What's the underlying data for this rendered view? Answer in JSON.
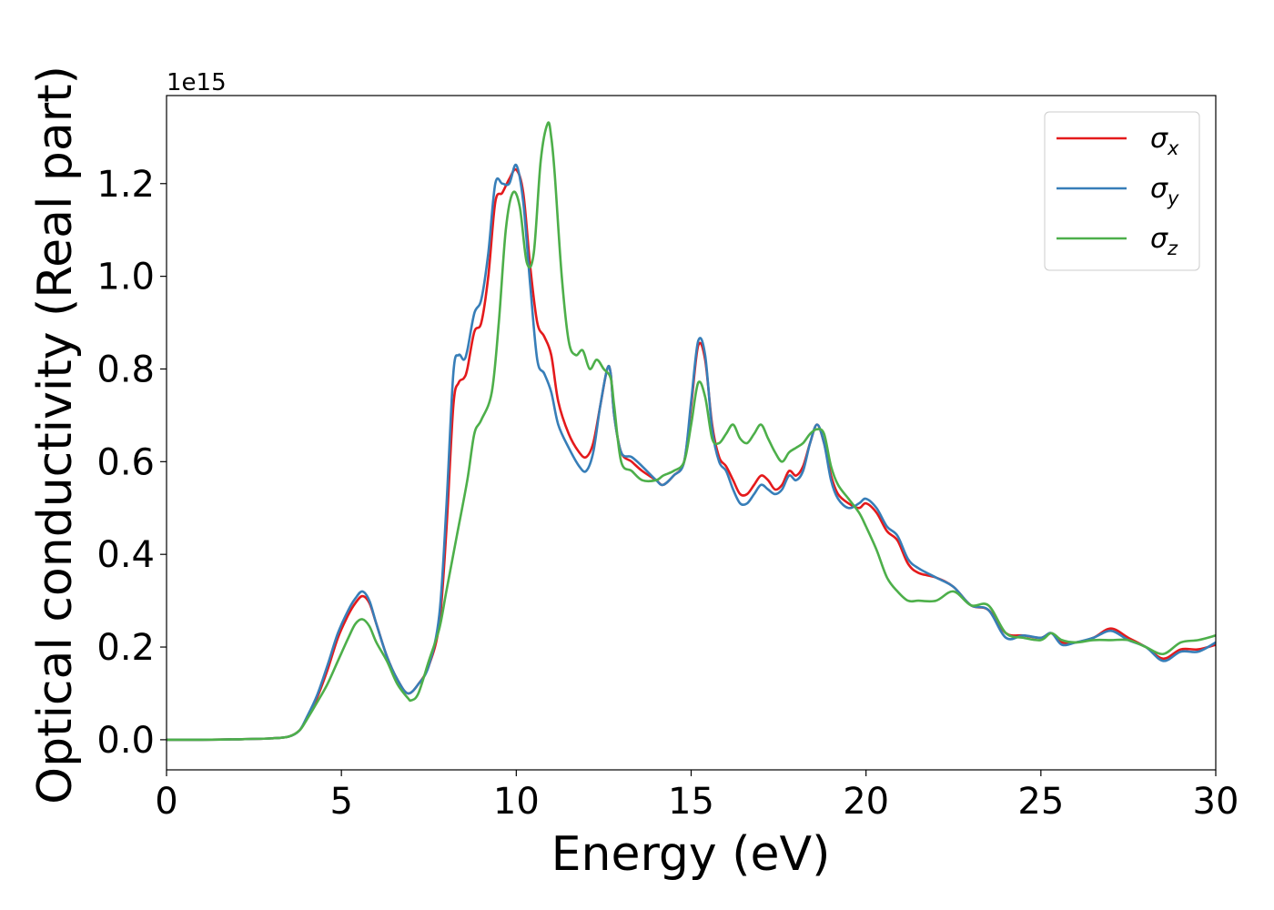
{
  "chart_data": {
    "type": "line",
    "title": "",
    "xlabel": "Energy (eV)",
    "ylabel": "Optical conductivity (Real part)",
    "y_offset_label": "1e15",
    "xlim": [
      0,
      30
    ],
    "ylim": [
      -0.065,
      1.39
    ],
    "x_ticks": [
      0,
      5,
      10,
      15,
      20,
      25,
      30
    ],
    "y_ticks": [
      0.0,
      0.2,
      0.4,
      0.6,
      0.8,
      1.0,
      1.2
    ],
    "grid": false,
    "legend_position": "upper right",
    "series": [
      {
        "name": "σ",
        "subscript": "x",
        "color": "#e41a1c",
        "x": [
          0,
          1,
          2,
          3,
          3.5,
          3.8,
          4.0,
          4.3,
          4.6,
          4.9,
          5.2,
          5.4,
          5.6,
          5.8,
          6.0,
          6.3,
          6.6,
          6.9,
          7.2,
          7.5,
          7.8,
          8.0,
          8.2,
          8.35,
          8.5,
          8.6,
          8.8,
          9.0,
          9.2,
          9.4,
          9.6,
          9.8,
          10.0,
          10.2,
          10.4,
          10.6,
          10.8,
          11.0,
          11.2,
          11.5,
          11.8,
          12.0,
          12.2,
          12.4,
          12.6,
          12.7,
          12.8,
          13.0,
          13.3,
          13.6,
          14.0,
          14.2,
          14.5,
          14.8,
          15.0,
          15.2,
          15.4,
          15.6,
          15.8,
          16.0,
          16.2,
          16.4,
          16.6,
          16.8,
          17.0,
          17.2,
          17.4,
          17.6,
          17.8,
          18.0,
          18.2,
          18.4,
          18.6,
          18.8,
          19.0,
          19.2,
          19.5,
          19.8,
          20.0,
          20.3,
          20.6,
          20.9,
          21.2,
          21.5,
          22.0,
          22.5,
          23.0,
          23.5,
          24.0,
          24.5,
          25.0,
          25.3,
          25.6,
          26.0,
          26.5,
          27.0,
          27.5,
          28.0,
          28.5,
          29.0,
          29.5,
          30.0
        ],
        "values": [
          0.0,
          0.0,
          0.001,
          0.003,
          0.007,
          0.02,
          0.045,
          0.09,
          0.15,
          0.22,
          0.27,
          0.295,
          0.31,
          0.295,
          0.25,
          0.18,
          0.13,
          0.1,
          0.12,
          0.16,
          0.25,
          0.45,
          0.72,
          0.77,
          0.78,
          0.8,
          0.88,
          0.9,
          1.0,
          1.16,
          1.18,
          1.21,
          1.23,
          1.18,
          1.02,
          0.9,
          0.87,
          0.83,
          0.73,
          0.66,
          0.62,
          0.61,
          0.64,
          0.72,
          0.8,
          0.79,
          0.7,
          0.62,
          0.6,
          0.58,
          0.56,
          0.55,
          0.57,
          0.6,
          0.72,
          0.85,
          0.82,
          0.68,
          0.61,
          0.59,
          0.56,
          0.53,
          0.53,
          0.55,
          0.57,
          0.56,
          0.54,
          0.55,
          0.58,
          0.57,
          0.59,
          0.64,
          0.68,
          0.64,
          0.57,
          0.53,
          0.51,
          0.5,
          0.51,
          0.49,
          0.45,
          0.43,
          0.38,
          0.36,
          0.35,
          0.33,
          0.29,
          0.28,
          0.23,
          0.225,
          0.22,
          0.23,
          0.21,
          0.21,
          0.22,
          0.24,
          0.22,
          0.2,
          0.175,
          0.195,
          0.195,
          0.205
        ]
      },
      {
        "name": "σ",
        "subscript": "y",
        "color": "#377eb8",
        "x": [
          0,
          1,
          2,
          3,
          3.5,
          3.8,
          4.0,
          4.3,
          4.6,
          4.9,
          5.2,
          5.4,
          5.6,
          5.8,
          6.0,
          6.3,
          6.6,
          6.9,
          7.2,
          7.5,
          7.8,
          8.0,
          8.2,
          8.35,
          8.5,
          8.6,
          8.8,
          9.0,
          9.2,
          9.4,
          9.6,
          9.8,
          10.0,
          10.2,
          10.4,
          10.6,
          10.8,
          11.0,
          11.2,
          11.5,
          11.8,
          12.0,
          12.2,
          12.4,
          12.6,
          12.7,
          12.8,
          13.0,
          13.3,
          13.6,
          14.0,
          14.2,
          14.5,
          14.8,
          15.0,
          15.2,
          15.4,
          15.6,
          15.8,
          16.0,
          16.2,
          16.4,
          16.6,
          16.8,
          17.0,
          17.2,
          17.4,
          17.6,
          17.8,
          18.0,
          18.2,
          18.4,
          18.6,
          18.8,
          19.0,
          19.2,
          19.5,
          19.8,
          20.0,
          20.3,
          20.6,
          20.9,
          21.2,
          21.5,
          22.0,
          22.5,
          23.0,
          23.5,
          24.0,
          24.5,
          25.0,
          25.3,
          25.6,
          26.0,
          26.5,
          27.0,
          27.5,
          28.0,
          28.5,
          29.0,
          29.5,
          30.0
        ],
        "values": [
          0.0,
          0.0,
          0.001,
          0.003,
          0.007,
          0.02,
          0.047,
          0.095,
          0.16,
          0.23,
          0.28,
          0.305,
          0.32,
          0.3,
          0.25,
          0.18,
          0.13,
          0.1,
          0.12,
          0.16,
          0.27,
          0.5,
          0.79,
          0.83,
          0.82,
          0.84,
          0.92,
          0.95,
          1.05,
          1.2,
          1.2,
          1.2,
          1.24,
          1.16,
          0.98,
          0.82,
          0.79,
          0.75,
          0.68,
          0.63,
          0.59,
          0.58,
          0.62,
          0.72,
          0.8,
          0.79,
          0.7,
          0.62,
          0.61,
          0.59,
          0.56,
          0.55,
          0.57,
          0.6,
          0.73,
          0.86,
          0.83,
          0.67,
          0.6,
          0.58,
          0.54,
          0.51,
          0.51,
          0.53,
          0.55,
          0.54,
          0.53,
          0.54,
          0.57,
          0.56,
          0.58,
          0.64,
          0.68,
          0.64,
          0.56,
          0.52,
          0.5,
          0.51,
          0.52,
          0.5,
          0.46,
          0.44,
          0.39,
          0.37,
          0.35,
          0.33,
          0.29,
          0.28,
          0.22,
          0.225,
          0.22,
          0.23,
          0.205,
          0.21,
          0.22,
          0.235,
          0.215,
          0.2,
          0.17,
          0.19,
          0.19,
          0.21
        ]
      },
      {
        "name": "σ",
        "subscript": "z",
        "color": "#4daf4a",
        "x": [
          0,
          1,
          2,
          3,
          3.5,
          3.8,
          4.0,
          4.3,
          4.6,
          4.9,
          5.2,
          5.4,
          5.6,
          5.8,
          6.0,
          6.3,
          6.6,
          6.9,
          7.0,
          7.2,
          7.5,
          7.8,
          8.0,
          8.3,
          8.6,
          8.8,
          9.0,
          9.3,
          9.5,
          9.7,
          9.9,
          10.1,
          10.3,
          10.5,
          10.7,
          10.9,
          11.0,
          11.1,
          11.3,
          11.5,
          11.7,
          11.9,
          12.1,
          12.3,
          12.5,
          12.7,
          12.8,
          13.0,
          13.3,
          13.6,
          14.0,
          14.2,
          14.5,
          14.8,
          15.0,
          15.2,
          15.4,
          15.6,
          15.8,
          16.0,
          16.2,
          16.4,
          16.6,
          16.8,
          17.0,
          17.2,
          17.4,
          17.6,
          17.8,
          18.0,
          18.2,
          18.4,
          18.6,
          18.8,
          19.0,
          19.2,
          19.5,
          19.8,
          20.0,
          20.3,
          20.6,
          20.9,
          21.2,
          21.5,
          22.0,
          22.5,
          23.0,
          23.5,
          24.0,
          24.5,
          25.0,
          25.3,
          25.6,
          26.0,
          26.5,
          27.0,
          27.5,
          28.0,
          28.5,
          29.0,
          29.5,
          30.0
        ],
        "values": [
          0.0,
          0.0,
          0.001,
          0.003,
          0.007,
          0.02,
          0.042,
          0.08,
          0.12,
          0.17,
          0.22,
          0.25,
          0.26,
          0.245,
          0.21,
          0.17,
          0.12,
          0.09,
          0.085,
          0.1,
          0.17,
          0.24,
          0.32,
          0.44,
          0.56,
          0.66,
          0.69,
          0.75,
          0.9,
          1.1,
          1.18,
          1.15,
          1.03,
          1.05,
          1.25,
          1.33,
          1.3,
          1.22,
          1.0,
          0.86,
          0.83,
          0.84,
          0.8,
          0.82,
          0.8,
          0.78,
          0.72,
          0.6,
          0.58,
          0.56,
          0.56,
          0.57,
          0.58,
          0.6,
          0.68,
          0.77,
          0.74,
          0.65,
          0.64,
          0.66,
          0.68,
          0.65,
          0.64,
          0.66,
          0.68,
          0.65,
          0.62,
          0.6,
          0.62,
          0.63,
          0.64,
          0.66,
          0.67,
          0.66,
          0.59,
          0.55,
          0.52,
          0.49,
          0.46,
          0.41,
          0.35,
          0.32,
          0.3,
          0.3,
          0.3,
          0.32,
          0.29,
          0.29,
          0.23,
          0.22,
          0.215,
          0.23,
          0.215,
          0.21,
          0.215,
          0.215,
          0.215,
          0.2,
          0.185,
          0.21,
          0.215,
          0.225
        ]
      }
    ]
  }
}
